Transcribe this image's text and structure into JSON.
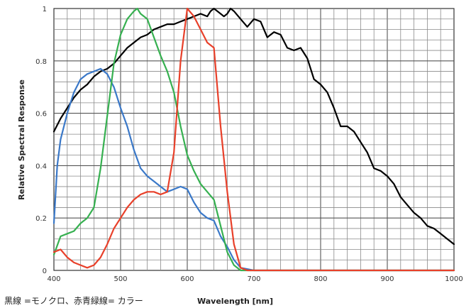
{
  "chart_data": {
    "type": "line",
    "xlabel": "Wavelength [nm]",
    "ylabel": "Relative Spectral Response",
    "xlim": [
      400,
      1000
    ],
    "ylim": [
      0,
      1
    ],
    "x_ticks": [
      "400",
      "500",
      "600",
      "700",
      "800",
      "900",
      "1000"
    ],
    "y_ticks": [
      "0",
      "0.2",
      "0.4",
      "0.6",
      "0.8",
      "1"
    ],
    "grid": true,
    "caption": "黒線 =モノクロ、赤青緑線= カラー",
    "series": [
      {
        "color": "#000000",
        "points": [
          [
            400,
            0.53
          ],
          [
            410,
            0.58
          ],
          [
            420,
            0.62
          ],
          [
            430,
            0.66
          ],
          [
            440,
            0.69
          ],
          [
            450,
            0.71
          ],
          [
            460,
            0.74
          ],
          [
            470,
            0.76
          ],
          [
            480,
            0.77
          ],
          [
            490,
            0.79
          ],
          [
            500,
            0.82
          ],
          [
            510,
            0.85
          ],
          [
            520,
            0.87
          ],
          [
            530,
            0.89
          ],
          [
            540,
            0.9
          ],
          [
            550,
            0.92
          ],
          [
            560,
            0.93
          ],
          [
            570,
            0.94
          ],
          [
            580,
            0.94
          ],
          [
            590,
            0.95
          ],
          [
            600,
            0.96
          ],
          [
            610,
            0.97
          ],
          [
            620,
            0.98
          ],
          [
            630,
            0.97
          ],
          [
            635,
            0.99
          ],
          [
            640,
            1.0
          ],
          [
            650,
            0.98
          ],
          [
            655,
            0.97
          ],
          [
            660,
            0.98
          ],
          [
            665,
            1.0
          ],
          [
            670,
            0.99
          ],
          [
            680,
            0.96
          ],
          [
            690,
            0.93
          ],
          [
            700,
            0.96
          ],
          [
            710,
            0.95
          ],
          [
            720,
            0.89
          ],
          [
            730,
            0.91
          ],
          [
            740,
            0.9
          ],
          [
            750,
            0.85
          ],
          [
            760,
            0.84
          ],
          [
            770,
            0.85
          ],
          [
            780,
            0.81
          ],
          [
            790,
            0.73
          ],
          [
            800,
            0.71
          ],
          [
            810,
            0.68
          ],
          [
            820,
            0.62
          ],
          [
            830,
            0.55
          ],
          [
            840,
            0.55
          ],
          [
            850,
            0.53
          ],
          [
            860,
            0.49
          ],
          [
            870,
            0.45
          ],
          [
            880,
            0.39
          ],
          [
            890,
            0.38
          ],
          [
            900,
            0.36
          ],
          [
            910,
            0.33
          ],
          [
            920,
            0.28
          ],
          [
            930,
            0.25
          ],
          [
            940,
            0.22
          ],
          [
            950,
            0.2
          ],
          [
            960,
            0.17
          ],
          [
            970,
            0.16
          ],
          [
            980,
            0.14
          ],
          [
            990,
            0.12
          ],
          [
            1000,
            0.1
          ]
        ]
      },
      {
        "color": "#3a78c8",
        "points": [
          [
            400,
            0.18
          ],
          [
            405,
            0.4
          ],
          [
            410,
            0.5
          ],
          [
            420,
            0.6
          ],
          [
            430,
            0.68
          ],
          [
            440,
            0.73
          ],
          [
            450,
            0.75
          ],
          [
            460,
            0.76
          ],
          [
            470,
            0.77
          ],
          [
            480,
            0.75
          ],
          [
            490,
            0.7
          ],
          [
            500,
            0.62
          ],
          [
            510,
            0.55
          ],
          [
            520,
            0.46
          ],
          [
            530,
            0.39
          ],
          [
            540,
            0.36
          ],
          [
            550,
            0.34
          ],
          [
            560,
            0.32
          ],
          [
            570,
            0.3
          ],
          [
            580,
            0.31
          ],
          [
            590,
            0.32
          ],
          [
            600,
            0.31
          ],
          [
            610,
            0.26
          ],
          [
            620,
            0.22
          ],
          [
            630,
            0.2
          ],
          [
            640,
            0.19
          ],
          [
            650,
            0.13
          ],
          [
            660,
            0.09
          ],
          [
            670,
            0.04
          ],
          [
            680,
            0.01
          ],
          [
            700,
            0.0
          ],
          [
            800,
            0.0
          ],
          [
            880,
            0.0
          ],
          [
            1000,
            0.0
          ]
        ]
      },
      {
        "color": "#36b050",
        "points": [
          [
            400,
            0.06
          ],
          [
            410,
            0.13
          ],
          [
            420,
            0.14
          ],
          [
            430,
            0.15
          ],
          [
            440,
            0.18
          ],
          [
            450,
            0.2
          ],
          [
            460,
            0.24
          ],
          [
            470,
            0.39
          ],
          [
            480,
            0.59
          ],
          [
            490,
            0.79
          ],
          [
            500,
            0.9
          ],
          [
            510,
            0.96
          ],
          [
            520,
            0.99
          ],
          [
            525,
            1.0
          ],
          [
            530,
            0.98
          ],
          [
            540,
            0.96
          ],
          [
            550,
            0.89
          ],
          [
            560,
            0.82
          ],
          [
            570,
            0.76
          ],
          [
            580,
            0.68
          ],
          [
            590,
            0.55
          ],
          [
            600,
            0.44
          ],
          [
            610,
            0.38
          ],
          [
            620,
            0.33
          ],
          [
            630,
            0.3
          ],
          [
            640,
            0.27
          ],
          [
            650,
            0.17
          ],
          [
            660,
            0.07
          ],
          [
            670,
            0.02
          ],
          [
            680,
            0.0
          ],
          [
            700,
            0.0
          ],
          [
            1000,
            0.0
          ]
        ]
      },
      {
        "color": "#e8402a",
        "points": [
          [
            400,
            0.07
          ],
          [
            410,
            0.08
          ],
          [
            420,
            0.05
          ],
          [
            430,
            0.03
          ],
          [
            440,
            0.02
          ],
          [
            450,
            0.01
          ],
          [
            460,
            0.02
          ],
          [
            470,
            0.05
          ],
          [
            480,
            0.1
          ],
          [
            490,
            0.16
          ],
          [
            500,
            0.2
          ],
          [
            510,
            0.24
          ],
          [
            520,
            0.27
          ],
          [
            530,
            0.29
          ],
          [
            540,
            0.3
          ],
          [
            550,
            0.3
          ],
          [
            560,
            0.29
          ],
          [
            570,
            0.3
          ],
          [
            580,
            0.45
          ],
          [
            590,
            0.8
          ],
          [
            600,
            1.0
          ],
          [
            610,
            0.97
          ],
          [
            620,
            0.92
          ],
          [
            630,
            0.87
          ],
          [
            640,
            0.85
          ],
          [
            650,
            0.55
          ],
          [
            660,
            0.3
          ],
          [
            670,
            0.1
          ],
          [
            680,
            0.01
          ],
          [
            690,
            0.0
          ],
          [
            1000,
            0.0
          ]
        ]
      }
    ]
  }
}
